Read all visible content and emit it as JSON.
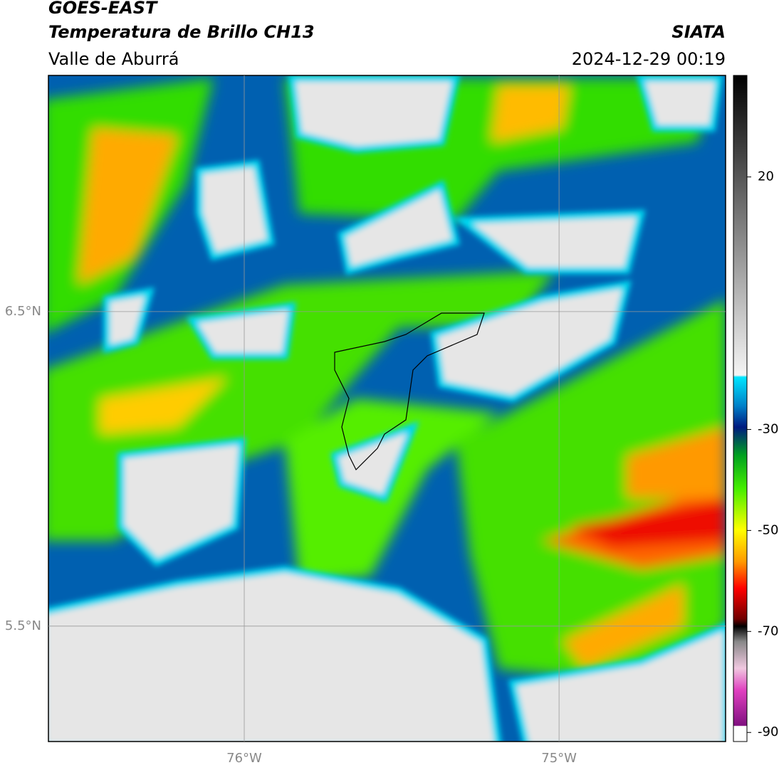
{
  "header": {
    "title": "GOES-EAST",
    "subtitle": "Temperatura de Brillo CH13",
    "region": "Valle de Aburrá",
    "source": "SIATA",
    "datetime": "2024-12-29 00:19"
  },
  "map": {
    "xlim": [
      -76.622,
      -74.471
    ],
    "ylim": [
      5.133,
      7.251
    ],
    "xticks": [
      {
        "value": -76,
        "label": "76°W"
      },
      {
        "value": -75,
        "label": "75°W"
      }
    ],
    "yticks": [
      {
        "value": 6.5,
        "label": "6.5°N"
      },
      {
        "value": 5.5,
        "label": "5.5°N"
      }
    ],
    "grid": true
  },
  "colorbar": {
    "lim": [
      -91.8,
      40.1
    ],
    "ticks": [
      20,
      -30,
      -50,
      -70,
      -90
    ]
  }
}
